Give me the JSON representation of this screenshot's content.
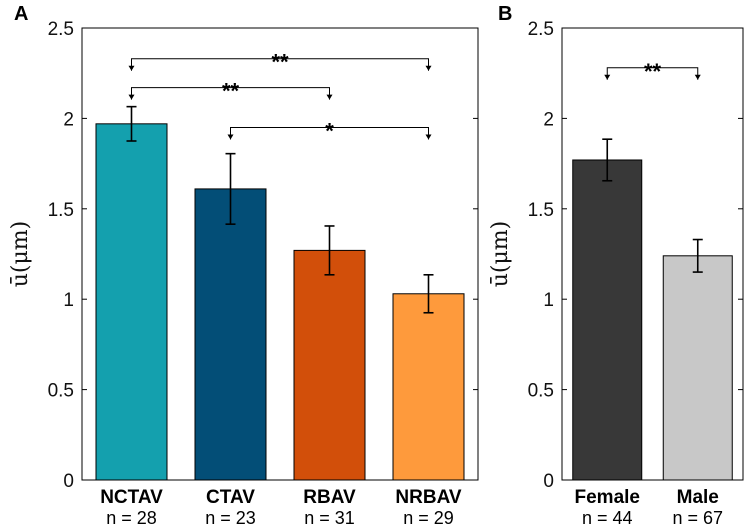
{
  "chart_data": [
    {
      "panel": "A",
      "type": "bar",
      "ylabel": "ū(μm)",
      "ylim": [
        0,
        2.5
      ],
      "yticks": [
        "0",
        "0.5",
        "1",
        "1.5",
        "2",
        "2.5"
      ],
      "categories": [
        "NCTAV",
        "CTAV",
        "RBAV",
        "NRBAV"
      ],
      "n_labels": [
        "n = 28",
        "n = 23",
        "n = 31",
        "n = 29"
      ],
      "values": [
        1.97,
        1.61,
        1.27,
        1.03
      ],
      "errors": [
        0.095,
        0.195,
        0.135,
        0.105
      ],
      "colors": [
        "#14a0ae",
        "#034e77",
        "#d24f0a",
        "#fe9a3c"
      ],
      "significance": [
        {
          "from": 0,
          "to": 3,
          "level": 2.33,
          "label": "**"
        },
        {
          "from": 0,
          "to": 2,
          "level": 2.17,
          "label": "**"
        },
        {
          "from": 1,
          "to": 3,
          "level": 1.95,
          "label": "*"
        }
      ]
    },
    {
      "panel": "B",
      "type": "bar",
      "ylabel": "ū(μm)",
      "ylim": [
        0,
        2.5
      ],
      "yticks": [
        "0",
        "0.5",
        "1",
        "1.5",
        "2",
        "2.5"
      ],
      "categories": [
        "Female",
        "Male"
      ],
      "n_labels": [
        "n = 44",
        "n = 67"
      ],
      "values": [
        1.77,
        1.24
      ],
      "errors": [
        0.115,
        0.09
      ],
      "colors": [
        "#383838",
        "#c8c8c8"
      ],
      "significance": [
        {
          "from": 0,
          "to": 1,
          "level": 2.28,
          "label": "**"
        }
      ]
    }
  ]
}
